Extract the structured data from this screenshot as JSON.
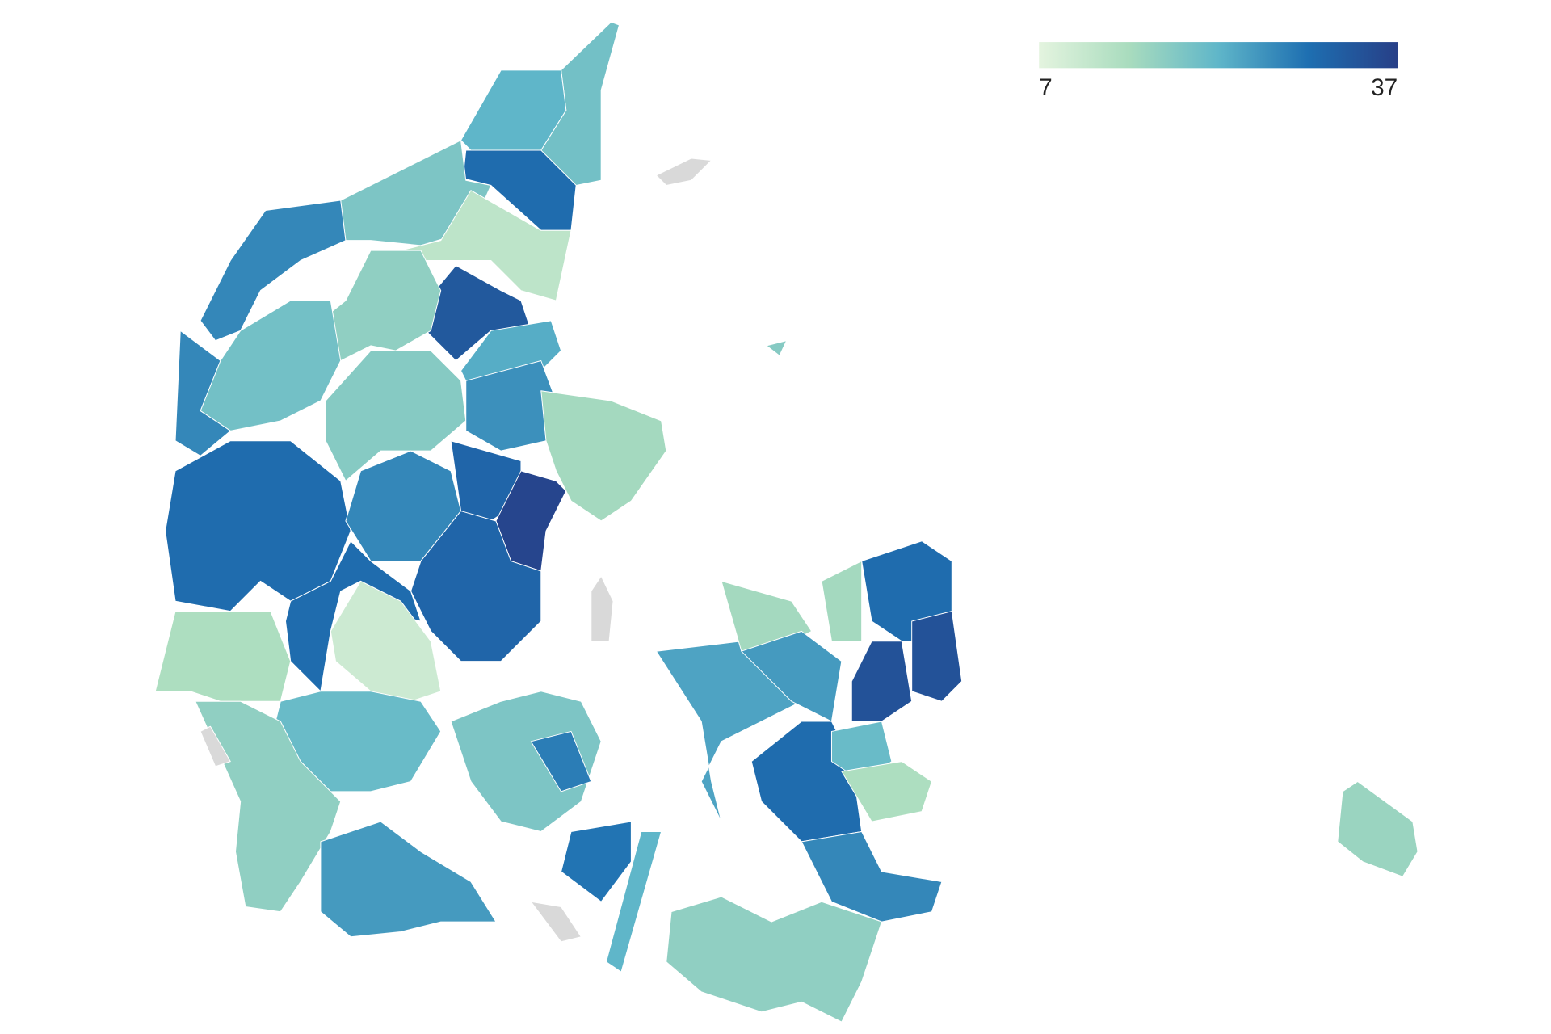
{
  "map": {
    "legend": {
      "min": 7,
      "max": 37,
      "colors": [
        "#e4f4df",
        "#a9dcbe",
        "#5fb6c9",
        "#1e6fb1",
        "#273f87"
      ]
    },
    "no_data_color": "#d9d9d9",
    "values": [
      20,
      22,
      30,
      19,
      27,
      12,
      33,
      17,
      23,
      20,
      27,
      18,
      26,
      15,
      30,
      27,
      31,
      36,
      31,
      30,
      10,
      14,
      21,
      17,
      25,
      19,
      28,
      29,
      22,
      24,
      15,
      25,
      30,
      21,
      14,
      27,
      30,
      34,
      34,
      15,
      17,
      16,
      null,
      null,
      null,
      18,
      null
    ]
  }
}
